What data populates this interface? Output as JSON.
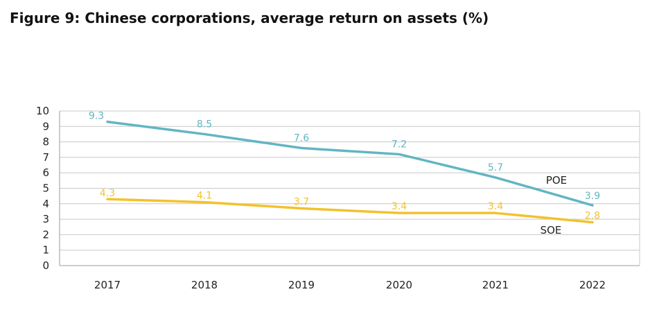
{
  "chart_data": {
    "type": "line",
    "title": "Figure 9: Chinese corporations, average return on assets (%)",
    "xlabel": "",
    "ylabel": "",
    "ylim": [
      0,
      10
    ],
    "yticks": [
      "0",
      "1",
      "2",
      "3",
      "4",
      "5",
      "6",
      "7",
      "8",
      "9",
      "10"
    ],
    "categories": [
      "2017",
      "2018",
      "2019",
      "2020",
      "2021",
      "2022"
    ],
    "grid": true,
    "legend": "none",
    "series": [
      {
        "name": "POE",
        "color": "#62b5c2",
        "values": [
          9.3,
          8.5,
          7.6,
          7.2,
          5.7,
          3.9
        ],
        "labels": [
          "9.3",
          "8.5",
          "7.6",
          "7.2",
          "5.7",
          "3.9"
        ]
      },
      {
        "name": "SOE",
        "color": "#f2c22c",
        "values": [
          4.3,
          4.1,
          3.7,
          3.4,
          3.4,
          2.8
        ],
        "labels": [
          "4.3",
          "4.1",
          "3.7",
          "3.4",
          "3.4",
          "2.8"
        ]
      }
    ]
  }
}
